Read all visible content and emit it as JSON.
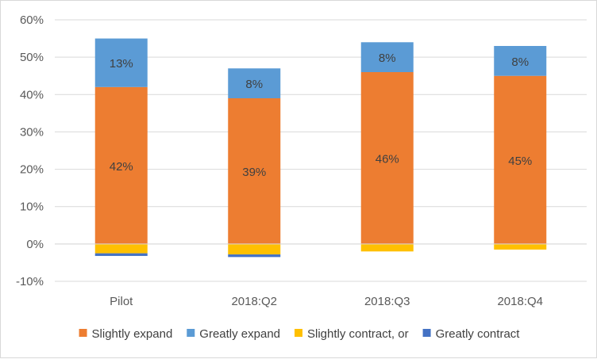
{
  "chart_data": {
    "type": "bar",
    "stacked": true,
    "categories": [
      "Pilot",
      "2018:Q2",
      "2018:Q3",
      "2018:Q4"
    ],
    "series": [
      {
        "name": "Slightly expand",
        "color": "#ED7D31",
        "values": [
          42,
          39,
          46,
          45
        ],
        "labels": [
          "42%",
          "39%",
          "46%",
          "45%"
        ]
      },
      {
        "name": "Greatly expand",
        "color": "#5B9BD5",
        "values": [
          13,
          8,
          8,
          8
        ],
        "labels": [
          "13%",
          "8%",
          "8%",
          "8%"
        ]
      },
      {
        "name": "Slightly contract, or",
        "color": "#FFC000",
        "values": [
          -2.5,
          -2.8,
          -2,
          -1.5
        ],
        "labels": [
          "",
          "",
          "",
          ""
        ]
      },
      {
        "name": "Greatly contract",
        "color": "#4472C4",
        "values": [
          -0.7,
          -0.7,
          0,
          0
        ],
        "labels": [
          "",
          "",
          "",
          ""
        ]
      }
    ],
    "ylim": [
      -10,
      60
    ],
    "yticks": [
      -10,
      0,
      10,
      20,
      30,
      40,
      50,
      60
    ],
    "ytick_labels": [
      "-10%",
      "0%",
      "10%",
      "20%",
      "30%",
      "40%",
      "50%",
      "60%"
    ],
    "grid": true,
    "legend_position": "bottom",
    "title": "",
    "xlabel": "",
    "ylabel": ""
  }
}
